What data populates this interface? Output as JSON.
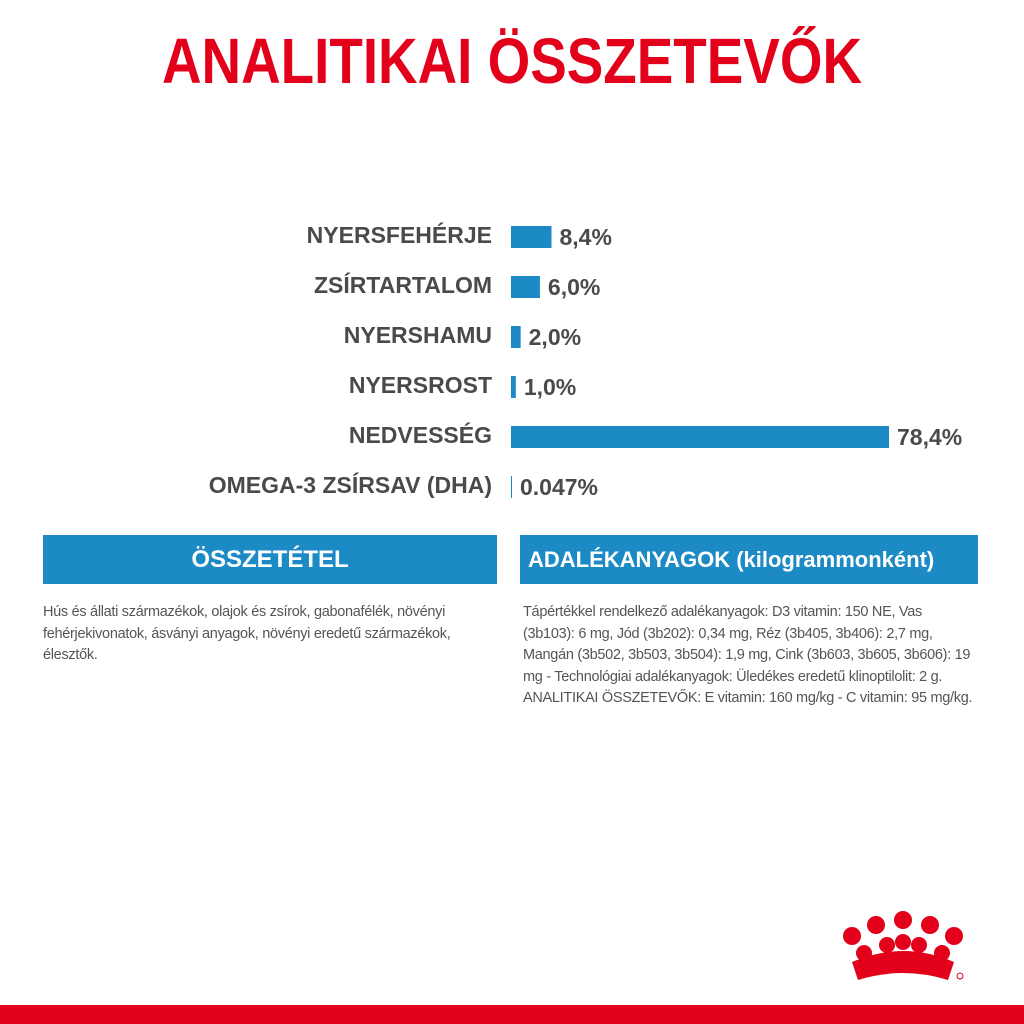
{
  "chart_data": {
    "type": "bar",
    "orientation": "horizontal",
    "title": "ANALITIKAI ÖSSZETEVŐK",
    "categories": [
      "NYERSFEHÉRJE",
      "ZSÍRTARTALOM",
      "NYERSHAMU",
      "NYERSROST",
      "NEDVESSÉG",
      "OMEGA-3 ZSÍRSAV (DHA)"
    ],
    "values": [
      8.4,
      6.0,
      2.0,
      1.0,
      78.4,
      0.047
    ],
    "value_labels": [
      "8,4%",
      "6,0%",
      "2,0%",
      "1,0%",
      "78,4%",
      "0.047%"
    ],
    "color": "#1b8ac5"
  },
  "sections": [
    {
      "heading": "ÖSSZETÉTEL",
      "text": "Hús és állati származékok, olajok és zsírok, gabonafélék, növényi fehérjekivonatok, ásványi anyagok, növényi eredetű származékok, élesztők."
    },
    {
      "heading": "ADALÉKANYAGOK (kilogrammonként)",
      "text": "Tápértékkel rendelkező adalékanyagok: D3 vitamin: 150 NE, Vas (3b103): 6 mg, Jód (3b202): 0,34 mg, Réz (3b405, 3b406): 2,7 mg, Mangán (3b502, 3b503, 3b504): 1,9 mg, Cink (3b603, 3b605, 3b606): 19 mg - Technológiai adalékanyagok: Üledékes eredetű klinoptilolit: 2 g.",
      "text2": "ANALITIKAI ÖSSZETEVŐK: E vitamin: 160 mg/kg - C vitamin: 95 mg/kg."
    }
  ]
}
